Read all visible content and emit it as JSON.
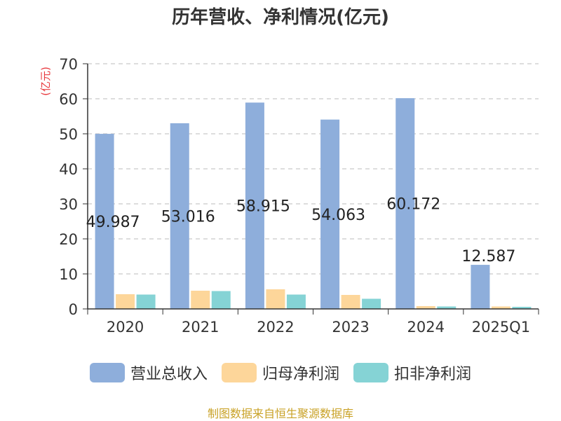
{
  "chart_data": {
    "type": "bar",
    "title": "历年营收、净利情况(亿元)",
    "ylabel": "(亿元)",
    "categories": [
      "2020",
      "2021",
      "2022",
      "2023",
      "2024",
      "2025Q1"
    ],
    "series": [
      {
        "name": "营业总收入",
        "color": "#8eaedb",
        "values": [
          49.987,
          53.016,
          58.915,
          54.063,
          60.172,
          12.587
        ]
      },
      {
        "name": "归母净利润",
        "color": "#fdd69a",
        "values": [
          4.2,
          5.2,
          5.6,
          4.0,
          0.8,
          0.7
        ]
      },
      {
        "name": "扣非净利润",
        "color": "#85d3d5",
        "values": [
          4.1,
          5.1,
          4.1,
          2.9,
          0.7,
          0.6
        ]
      }
    ],
    "value_labels": [
      "49.987",
      "53.016",
      "58.915",
      "54.063",
      "60.172",
      "12.587"
    ],
    "yticks": [
      0,
      10,
      20,
      30,
      40,
      50,
      60,
      70
    ],
    "ylim": [
      0,
      70
    ],
    "grid": true,
    "legend_position": "bottom"
  },
  "footer": {
    "source": "制图数据来自恒生聚源数据库"
  },
  "colors": {
    "ylabel": "#e8383d",
    "source": "#c9a227",
    "grid": "#bbbbbb"
  }
}
